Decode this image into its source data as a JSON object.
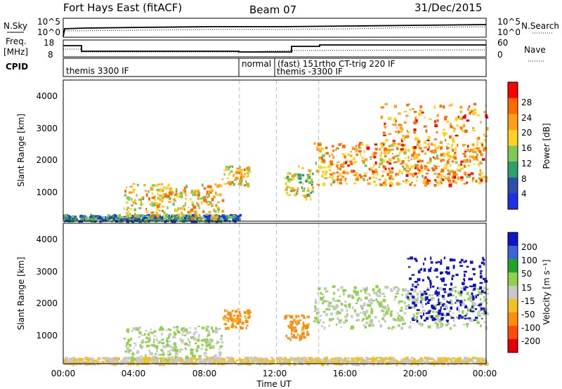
{
  "header": {
    "title": "Fort Hays East (fitACF)",
    "beam": "Beam 07",
    "date": "31/Dec/2015"
  },
  "panel_labels": {
    "nsky": "N.Sky",
    "nsearch": "N.Search",
    "freq_line1": "Freq.",
    "freq_line2": "[MHz]",
    "nave": "Nave",
    "cpid": "CPID"
  },
  "noise_panel": {
    "left_ticks": [
      "10^5",
      "10^0"
    ],
    "right_ticks": [
      "10^5",
      "10^0"
    ]
  },
  "freq_panel": {
    "left_ticks": [
      "18",
      "8"
    ],
    "right_ticks": [
      "60",
      "0"
    ]
  },
  "cpid_segments": [
    {
      "label": "themis 3300 IF",
      "start": 0.0
    },
    {
      "label": "normal",
      "start": 10.0
    },
    {
      "label": "(fast) 151rtho CT-trig 220 IF",
      "start": 12.1
    },
    {
      "label": "themis -3300 IF",
      "start": 12.1
    }
  ],
  "axes": {
    "ylabel": "Slant Range [km]",
    "xlabel": "Time UT",
    "x_ticks": [
      "00:00",
      "04:00",
      "08:00",
      "12:00",
      "16:00",
      "20:00",
      "00:00"
    ],
    "y_ticks": [
      "1000",
      "2000",
      "3000",
      "4000"
    ]
  },
  "power_colorbar": {
    "label": "Power [dB]",
    "ticks": [
      "28",
      "24",
      "20",
      "16",
      "12",
      "8",
      "4"
    ],
    "colors": [
      "#ff0000",
      "#ff6a00",
      "#ff9f1c",
      "#ffd21f",
      "#7fc857",
      "#2e9e6b",
      "#2a4fa8",
      "#1f2fe6"
    ]
  },
  "velocity_colorbar": {
    "label": "Velocity [m s⁻¹]",
    "ticks": [
      "200",
      "100",
      "50",
      "15",
      "-15",
      "-50",
      "-100",
      "-200"
    ],
    "colors": [
      "#1212c8",
      "#3a64d8",
      "#22a22a",
      "#8fd24a",
      "#c8c8c8",
      "#f2c020",
      "#ff8a10",
      "#ff4b0a",
      "#e60000"
    ]
  },
  "chart_data": [
    {
      "type": "heatmap",
      "title": "Power",
      "xlabel": "Time UT",
      "ylabel": "Slant Range [km]",
      "xlim": [
        0,
        24
      ],
      "ylim": [
        180,
        4500
      ],
      "colorbar": "Power [dB]",
      "colorbar_range": [
        0,
        30
      ],
      "vlines": [
        10.0,
        12.1,
        14.5
      ],
      "regions": [
        {
          "t": [
            0,
            10
          ],
          "r": [
            200,
            400
          ],
          "value": 8
        },
        {
          "t": [
            3.4,
            9
          ],
          "r": [
            300,
            1350
          ],
          "value": 18
        },
        {
          "t": [
            9.0,
            10.5
          ],
          "r": [
            1300,
            1900
          ],
          "value": 18
        },
        {
          "t": [
            12.5,
            13.3
          ],
          "r": [
            1000,
            1700
          ],
          "value": 16
        },
        {
          "t": [
            13.3,
            14.2
          ],
          "r": [
            900,
            1900
          ],
          "value": 14
        },
        {
          "t": [
            14.2,
            24
          ],
          "r": [
            1300,
            2600
          ],
          "value": 20
        },
        {
          "t": [
            18,
            24
          ],
          "r": [
            1300,
            3800
          ],
          "value": 22
        }
      ]
    },
    {
      "type": "heatmap",
      "title": "Velocity",
      "xlabel": "Time UT",
      "ylabel": "Slant Range [km]",
      "xlim": [
        0,
        24
      ],
      "ylim": [
        180,
        4500
      ],
      "colorbar": "Velocity [m s⁻¹]",
      "colorbar_range": [
        -250,
        250
      ],
      "vlines": [
        10.0,
        12.1,
        14.5
      ],
      "regions": [
        {
          "t": [
            0,
            24
          ],
          "r": [
            200,
            400
          ],
          "value": -30
        },
        {
          "t": [
            3.4,
            9
          ],
          "r": [
            300,
            1350
          ],
          "value": 0
        },
        {
          "t": [
            9.0,
            10.5
          ],
          "r": [
            1300,
            1900
          ],
          "value": -90
        },
        {
          "t": [
            12.5,
            13.9
          ],
          "r": [
            950,
            1700
          ],
          "value": -100
        },
        {
          "t": [
            14.2,
            24
          ],
          "r": [
            1300,
            2600
          ],
          "value": 0
        },
        {
          "t": [
            19.5,
            24
          ],
          "r": [
            1500,
            3500
          ],
          "value": 180
        }
      ]
    }
  ]
}
